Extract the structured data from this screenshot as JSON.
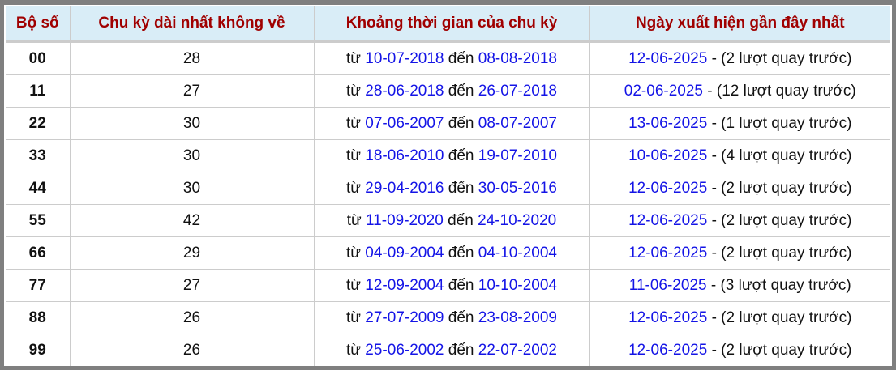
{
  "headers": [
    "Bộ số",
    "Chu kỳ dài nhất không về",
    "Khoảng thời gian của chu kỳ",
    "Ngày xuất hiện gần đây nhất"
  ],
  "labels": {
    "from": "từ",
    "to": "đến",
    "sep": "-"
  },
  "rows": [
    {
      "pair": "00",
      "cycle": "28",
      "start": "10-07-2018",
      "end": "08-08-2018",
      "last": "12-06-2025",
      "ago": "(2 lượt quay trước)"
    },
    {
      "pair": "11",
      "cycle": "27",
      "start": "28-06-2018",
      "end": "26-07-2018",
      "last": "02-06-2025",
      "ago": "(12 lượt quay trước)"
    },
    {
      "pair": "22",
      "cycle": "30",
      "start": "07-06-2007",
      "end": "08-07-2007",
      "last": "13-06-2025",
      "ago": "(1 lượt quay trước)"
    },
    {
      "pair": "33",
      "cycle": "30",
      "start": "18-06-2010",
      "end": "19-07-2010",
      "last": "10-06-2025",
      "ago": "(4 lượt quay trước)"
    },
    {
      "pair": "44",
      "cycle": "30",
      "start": "29-04-2016",
      "end": "30-05-2016",
      "last": "12-06-2025",
      "ago": "(2 lượt quay trước)"
    },
    {
      "pair": "55",
      "cycle": "42",
      "start": "11-09-2020",
      "end": "24-10-2020",
      "last": "12-06-2025",
      "ago": "(2 lượt quay trước)"
    },
    {
      "pair": "66",
      "cycle": "29",
      "start": "04-09-2004",
      "end": "04-10-2004",
      "last": "12-06-2025",
      "ago": "(2 lượt quay trước)"
    },
    {
      "pair": "77",
      "cycle": "27",
      "start": "12-09-2004",
      "end": "10-10-2004",
      "last": "11-06-2025",
      "ago": "(3 lượt quay trước)"
    },
    {
      "pair": "88",
      "cycle": "26",
      "start": "27-07-2009",
      "end": "23-08-2009",
      "last": "12-06-2025",
      "ago": "(2 lượt quay trước)"
    },
    {
      "pair": "99",
      "cycle": "26",
      "start": "25-06-2002",
      "end": "22-07-2002",
      "last": "12-06-2025",
      "ago": "(2 lượt quay trước)"
    }
  ]
}
